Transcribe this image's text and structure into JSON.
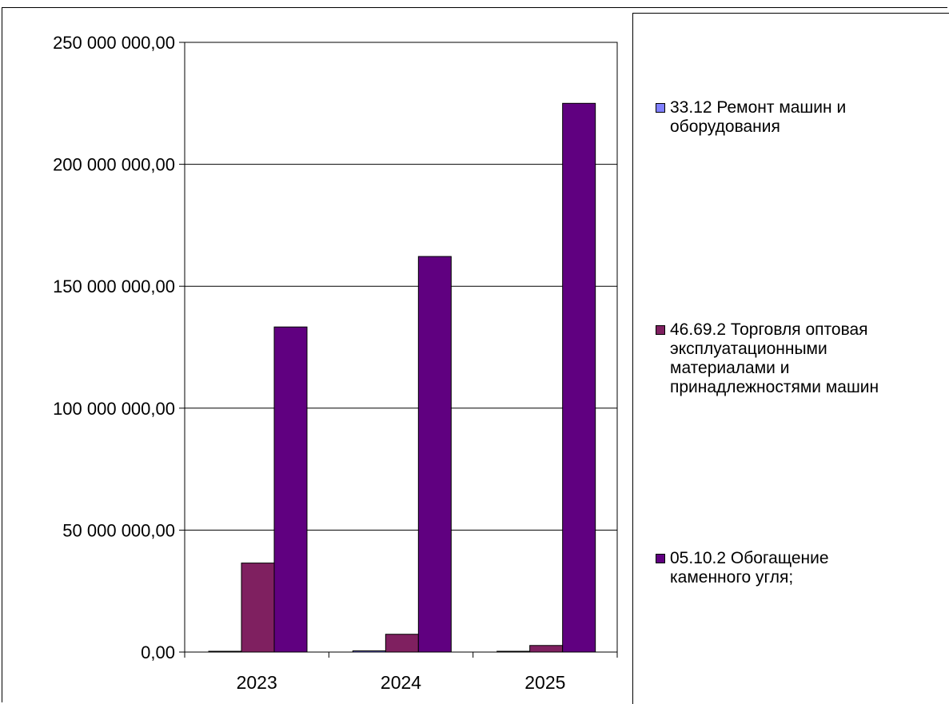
{
  "chart_data": {
    "type": "bar",
    "title": "",
    "xlabel": "",
    "ylabel": "",
    "categories": [
      "2023",
      "2024",
      "2025"
    ],
    "ylim": [
      0,
      250000000
    ],
    "yticks": [
      {
        "value": 0,
        "label": "0,00"
      },
      {
        "value": 50000000,
        "label": "50 000 000,00"
      },
      {
        "value": 100000000,
        "label": "100 000 000,00"
      },
      {
        "value": 150000000,
        "label": "150 000 000,00"
      },
      {
        "value": 200000000,
        "label": "200 000 000,00"
      },
      {
        "value": 250000000,
        "label": "250 000 000,00"
      }
    ],
    "grid": "horizontal",
    "legend_position": "right",
    "series": [
      {
        "name": "33.12 Ремонт машин и оборудования",
        "color": "#8080ff",
        "values": [
          200000,
          500000,
          150000
        ]
      },
      {
        "name": "46.69.2 Торговля оптовая эксплуатационными материалами и принадлежностями машин",
        "color": "#7f2060",
        "values": [
          36500000,
          7300000,
          2700000
        ]
      },
      {
        "name": "05.10.2 Обогащение каменного угля;",
        "color": "#600080",
        "values": [
          133300000,
          162200000,
          225000000
        ]
      }
    ]
  },
  "legend": {
    "items": [
      {
        "line1": "33.12 Ремонт машин и",
        "line2": "оборудования",
        "line3": "",
        "line4": "",
        "color": "#8080ff"
      },
      {
        "line1": "46.69.2 Торговля оптовая",
        "line2": "эксплуатационными",
        "line3": "материалами и",
        "line4": "принадлежностями машин",
        "color": "#7f2060"
      },
      {
        "line1": "05.10.2 Обогащение",
        "line2": "каменного угля;",
        "line3": "",
        "line4": "",
        "color": "#600080"
      }
    ]
  }
}
